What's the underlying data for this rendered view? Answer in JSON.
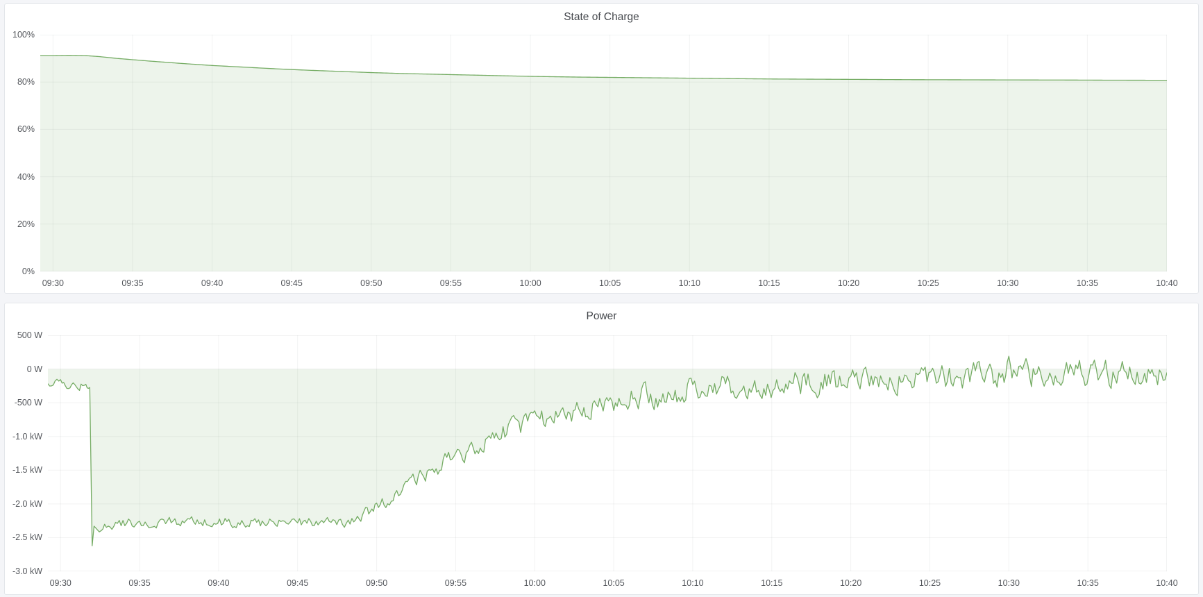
{
  "page": {
    "background": "#f4f5f8"
  },
  "panels": [
    {
      "title": "State of Charge"
    },
    {
      "title": "Power"
    }
  ],
  "colors": {
    "series_line": "#75ac64",
    "series_fill": "rgba(117,172,100,0.13)",
    "gridline": "rgba(20,30,40,0.055)",
    "axis_text": "#54575c",
    "title_text": "#45484d"
  },
  "chart_data": [
    {
      "type": "area",
      "title": "State of Charge",
      "ylabel": "",
      "xlabel": "",
      "legend": "none",
      "grid": true,
      "x_domain_minutes": [
        -0.8,
        70
      ],
      "x_ticks": [
        {
          "t": 0,
          "label": "09:30"
        },
        {
          "t": 5,
          "label": "09:35"
        },
        {
          "t": 10,
          "label": "09:40"
        },
        {
          "t": 15,
          "label": "09:45"
        },
        {
          "t": 20,
          "label": "09:50"
        },
        {
          "t": 25,
          "label": "09:55"
        },
        {
          "t": 30,
          "label": "10:00"
        },
        {
          "t": 35,
          "label": "10:05"
        },
        {
          "t": 40,
          "label": "10:10"
        },
        {
          "t": 45,
          "label": "10:15"
        },
        {
          "t": 50,
          "label": "10:20"
        },
        {
          "t": 55,
          "label": "10:25"
        },
        {
          "t": 60,
          "label": "10:30"
        },
        {
          "t": 65,
          "label": "10:35"
        },
        {
          "t": 70,
          "label": "10:40"
        }
      ],
      "y_domain": [
        0,
        100
      ],
      "y_ticks": [
        {
          "value": 100,
          "label": "100%"
        },
        {
          "value": 80,
          "label": "80%"
        },
        {
          "value": 60,
          "label": "60%"
        },
        {
          "value": 40,
          "label": "40%"
        },
        {
          "value": 20,
          "label": "20%"
        },
        {
          "value": 0,
          "label": "0%"
        }
      ],
      "baseline": 0,
      "unit": "percent",
      "series": [
        {
          "name": "State of Charge",
          "points": [
            [
              -0.8,
              91.2
            ],
            [
              0,
              91.2
            ],
            [
              1,
              91.3
            ],
            [
              2,
              91.2
            ],
            [
              3,
              90.7
            ],
            [
              4,
              90.0
            ],
            [
              6,
              88.9
            ],
            [
              8,
              87.9
            ],
            [
              10,
              87.0
            ],
            [
              12,
              86.3
            ],
            [
              14,
              85.6
            ],
            [
              16,
              85.0
            ],
            [
              18,
              84.5
            ],
            [
              20,
              84.0
            ],
            [
              22,
              83.6
            ],
            [
              24,
              83.3
            ],
            [
              26,
              83.0
            ],
            [
              28,
              82.7
            ],
            [
              30,
              82.4
            ],
            [
              33,
              82.1
            ],
            [
              36,
              81.9
            ],
            [
              39,
              81.7
            ],
            [
              42,
              81.5
            ],
            [
              45,
              81.3
            ],
            [
              48,
              81.2
            ],
            [
              51,
              81.1
            ],
            [
              54,
              81.0
            ],
            [
              57,
              80.95
            ],
            [
              60,
              80.9
            ],
            [
              64,
              80.85
            ],
            [
              66,
              80.8
            ],
            [
              70,
              80.75
            ]
          ],
          "noise_segments": [],
          "noise_seed": 0
        }
      ]
    },
    {
      "type": "area",
      "title": "Power",
      "ylabel": "",
      "xlabel": "",
      "legend": "none",
      "grid": true,
      "x_domain_minutes": [
        -0.8,
        70
      ],
      "x_ticks": [
        {
          "t": 0,
          "label": "09:30"
        },
        {
          "t": 5,
          "label": "09:35"
        },
        {
          "t": 10,
          "label": "09:40"
        },
        {
          "t": 15,
          "label": "09:45"
        },
        {
          "t": 20,
          "label": "09:50"
        },
        {
          "t": 25,
          "label": "09:55"
        },
        {
          "t": 30,
          "label": "10:00"
        },
        {
          "t": 35,
          "label": "10:05"
        },
        {
          "t": 40,
          "label": "10:10"
        },
        {
          "t": 45,
          "label": "10:15"
        },
        {
          "t": 50,
          "label": "10:20"
        },
        {
          "t": 55,
          "label": "10:25"
        },
        {
          "t": 60,
          "label": "10:30"
        },
        {
          "t": 65,
          "label": "10:35"
        },
        {
          "t": 70,
          "label": "10:40"
        }
      ],
      "y_domain": [
        -3000,
        500
      ],
      "y_ticks": [
        {
          "value": 500,
          "label": "500 W"
        },
        {
          "value": 0,
          "label": "0 W"
        },
        {
          "value": -500,
          "label": "-500 W"
        },
        {
          "value": -1000,
          "label": "-1.0 kW"
        },
        {
          "value": -1500,
          "label": "-1.5 kW"
        },
        {
          "value": -2000,
          "label": "-2.0 kW"
        },
        {
          "value": -2500,
          "label": "-2.5 kW"
        },
        {
          "value": -3000,
          "label": "-3.0 kW"
        }
      ],
      "baseline": 0,
      "unit": "watt",
      "series": [
        {
          "name": "Power",
          "points": [
            [
              -0.8,
              -215
            ],
            [
              0,
              -235
            ],
            [
              0.4,
              -222
            ],
            [
              0.8,
              -252
            ],
            [
              1.2,
              -238
            ],
            [
              1.6,
              -248
            ],
            [
              1.85,
              -262
            ],
            [
              2.0,
              -2620
            ],
            [
              2.12,
              -2330
            ],
            [
              2.45,
              -2415
            ],
            [
              2.9,
              -2350
            ],
            [
              3.6,
              -2310
            ],
            [
              5,
              -2285
            ],
            [
              7,
              -2275
            ],
            [
              9,
              -2282
            ],
            [
              11,
              -2272
            ],
            [
              13,
              -2278
            ],
            [
              15,
              -2270
            ],
            [
              17,
              -2272
            ],
            [
              18.2,
              -2262
            ],
            [
              18.9,
              -2250
            ],
            [
              19.4,
              -2130
            ],
            [
              20,
              -2050
            ],
            [
              20.7,
              -1960
            ],
            [
              21.5,
              -1820
            ],
            [
              22.3,
              -1680
            ],
            [
              23.2,
              -1545
            ],
            [
              24.1,
              -1420
            ],
            [
              25,
              -1300
            ],
            [
              26,
              -1185
            ],
            [
              27,
              -1075
            ],
            [
              28,
              -980
            ],
            [
              29,
              -890
            ],
            [
              30,
              -805
            ],
            [
              31,
              -730
            ],
            [
              32,
              -665
            ],
            [
              33,
              -605
            ],
            [
              34,
              -550
            ],
            [
              35,
              -500
            ],
            [
              36,
              -455
            ],
            [
              37,
              -415
            ],
            [
              38,
              -380
            ],
            [
              39,
              -348
            ],
            [
              40,
              -318
            ],
            [
              41.5,
              -280
            ],
            [
              43,
              -248
            ],
            [
              44.5,
              -222
            ],
            [
              46,
              -200
            ],
            [
              48,
              -175
            ],
            [
              50,
              -155
            ],
            [
              52,
              -138
            ],
            [
              54,
              -122
            ],
            [
              56,
              -110
            ],
            [
              58,
              -98
            ],
            [
              59.6,
              -88
            ],
            [
              60,
              -20
            ],
            [
              60.4,
              -90
            ],
            [
              62,
              -78
            ],
            [
              64,
              -70
            ],
            [
              66,
              -68
            ],
            [
              68,
              -62
            ],
            [
              70,
              -55
            ]
          ],
          "noise_segments": [
            [
              -0.8,
              10
            ],
            [
              1.8,
              0
            ],
            [
              2.6,
              12
            ],
            [
              19,
              14
            ],
            [
              22,
              20
            ],
            [
              28,
              25
            ],
            [
              36,
              30
            ],
            [
              70,
              30
            ]
          ],
          "noise_seed": 3.7
        }
      ]
    }
  ]
}
